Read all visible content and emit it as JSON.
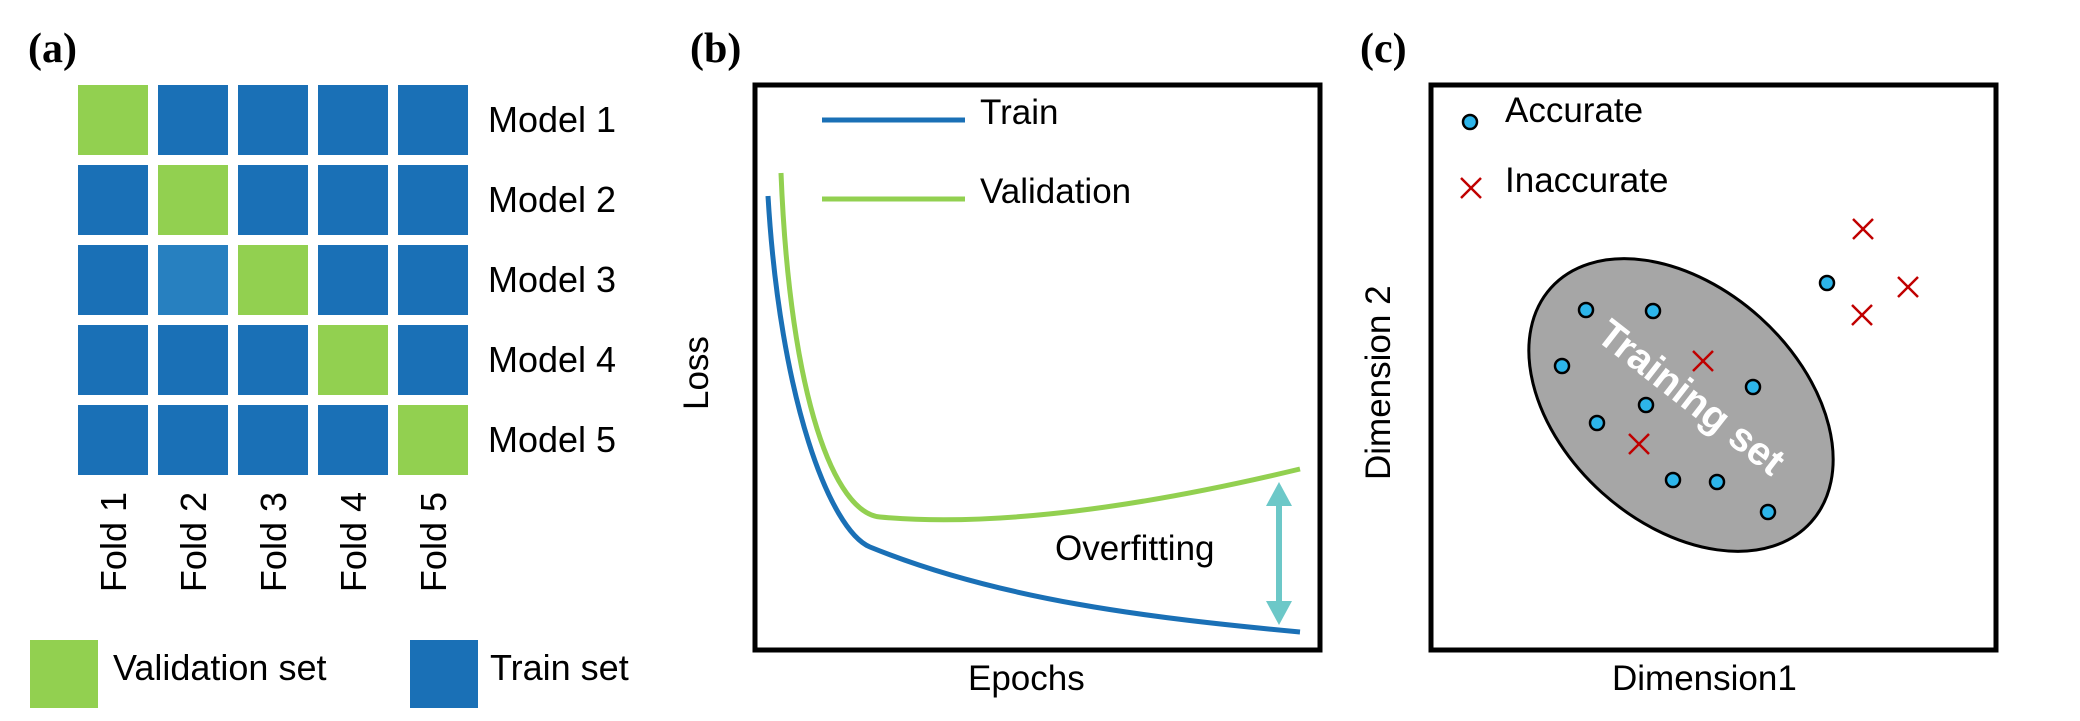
{
  "colors": {
    "validation": "#92d050",
    "train": "#1a70b6",
    "train_alt": "#2780c0",
    "train_line": "#1a70b6",
    "validation_line": "#92d050",
    "overfit_arrow": "#6cc8c8",
    "ellipse_fill": "#a6a6a6",
    "dot_fill": "#2db5ea",
    "cross": "#c00000"
  },
  "panel_a": {
    "label": "(a)",
    "grid": [
      [
        "V",
        "T",
        "T",
        "T",
        "T"
      ],
      [
        "T",
        "V",
        "T",
        "T",
        "T"
      ],
      [
        "T",
        "T2",
        "V",
        "T",
        "T"
      ],
      [
        "T",
        "T",
        "T",
        "V",
        "T"
      ],
      [
        "T",
        "T",
        "T",
        "T",
        "V"
      ]
    ],
    "models": [
      "Model 1",
      "Model 2",
      "Model 3",
      "Model 4",
      "Model 5"
    ],
    "folds": [
      "Fold 1",
      "Fold 2",
      "Fold 3",
      "Fold 4",
      "Fold 5"
    ],
    "legend_validation": "Validation set",
    "legend_train": "Train set"
  },
  "panel_b": {
    "label": "(b)",
    "legend_train": "Train",
    "legend_validation": "Validation",
    "ylabel": "Loss",
    "xlabel": "Epochs",
    "annotation": "Overfitting"
  },
  "panel_c": {
    "label": "(c)",
    "legend_accurate": "Accurate",
    "legend_inaccurate": "Inaccurate",
    "ylabel": "Dimension 2",
    "xlabel": "Dimension1",
    "ellipse_label": "Training set"
  }
}
